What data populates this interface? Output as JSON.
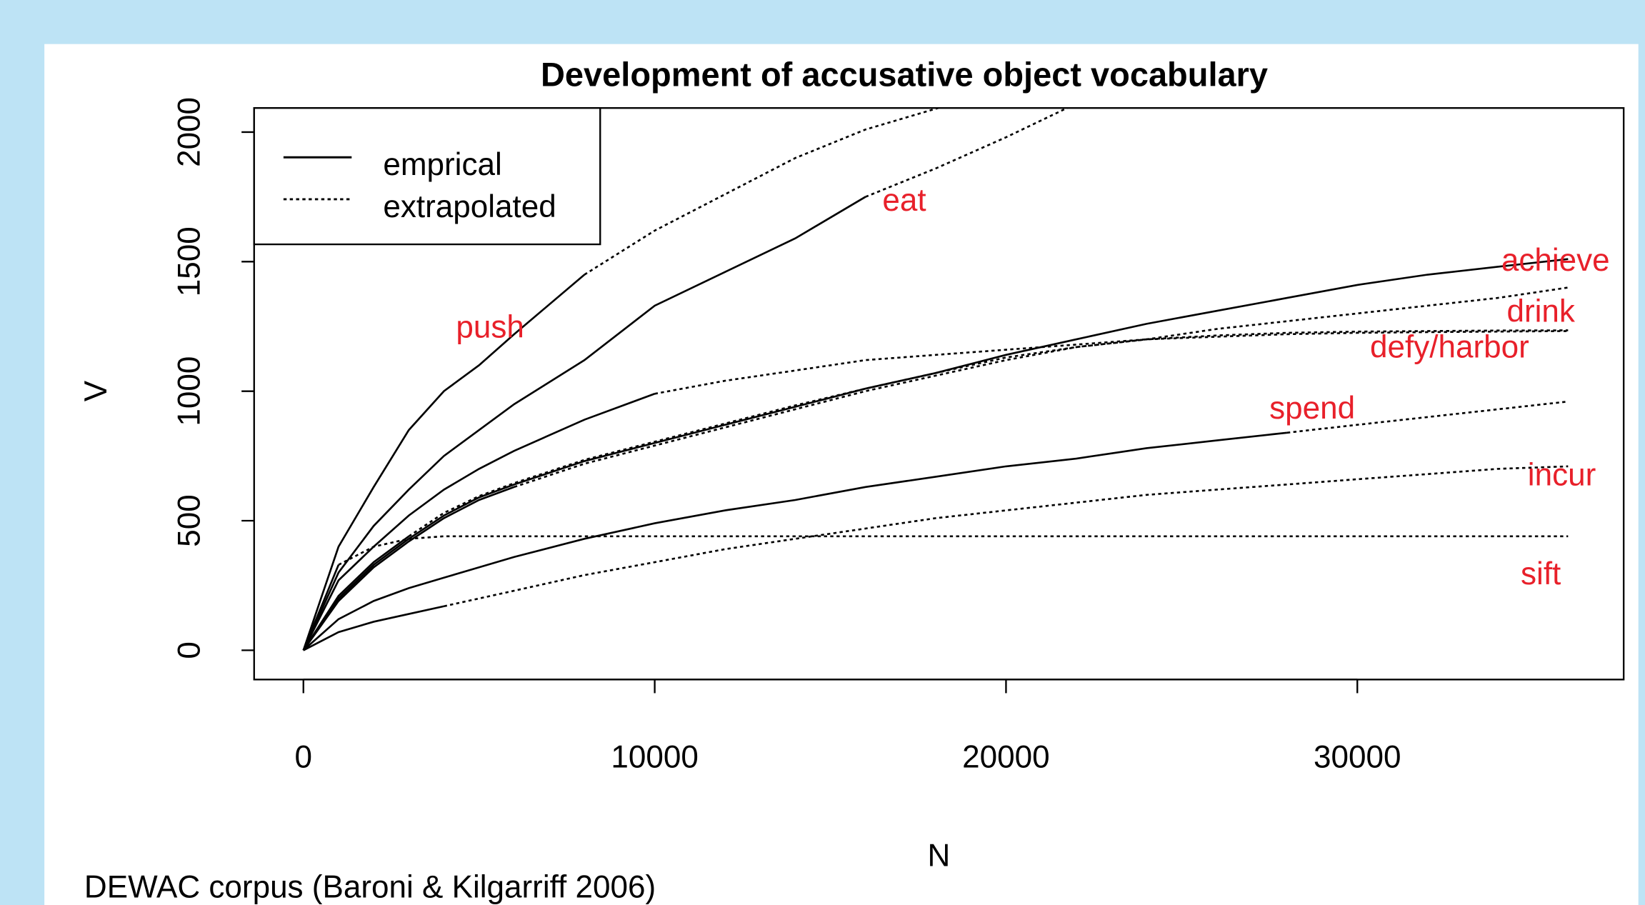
{
  "chart_data": {
    "type": "line",
    "title": "Development of accusative object vocabulary",
    "xlabel": "N",
    "ylabel": "V",
    "caption": "DEWAC corpus (Baroni & Kilgarriff 2006)",
    "legend": [
      "emprical",
      "extrapolated"
    ],
    "annotations": [
      "push",
      "eat",
      "achieve",
      "drink",
      "defy/harbor",
      "spend",
      "incur",
      "sift"
    ],
    "annotation_color": "#e8202a",
    "color": "#000000",
    "xlim": [
      -1403,
      37582
    ],
    "ylim": [
      -113,
      2093
    ],
    "xticks": [
      0,
      10000,
      20000,
      30000
    ],
    "yticks": [
      0,
      500,
      1000,
      1500,
      2000
    ],
    "x": [
      0,
      1000,
      2000,
      3000,
      4000,
      5000,
      6000,
      8000,
      10000,
      12000,
      14000,
      16000,
      18000,
      20000,
      22000,
      24000,
      26000,
      28000,
      30000,
      32000,
      34000,
      36000
    ],
    "series": [
      {
        "values": [
          0,
          400,
          630,
          850,
          1000,
          1100,
          1220,
          1450,
          null,
          null,
          null,
          null,
          null,
          null,
          null,
          null,
          null,
          null,
          null,
          null,
          null,
          null
        ],
        "extrapolated": [
          null,
          null,
          null,
          null,
          null,
          null,
          null,
          1450,
          1620,
          1760,
          1900,
          2010,
          2090,
          2170,
          null,
          null,
          null,
          null,
          null,
          null,
          null,
          null
        ]
      },
      {
        "values": [
          0,
          300,
          480,
          620,
          750,
          850,
          950,
          1120,
          1330,
          1460,
          1590,
          1750,
          null,
          null,
          null,
          null,
          null,
          null,
          null,
          null,
          null,
          null
        ],
        "extrapolated": [
          null,
          null,
          null,
          null,
          null,
          null,
          null,
          null,
          null,
          null,
          null,
          1750,
          1860,
          1980,
          2110,
          null,
          null,
          null,
          null,
          null,
          null,
          null
        ]
      },
      {
        "values": [
          0,
          270,
          400,
          520,
          620,
          700,
          770,
          890,
          990,
          null,
          null,
          null,
          null,
          null,
          null,
          null,
          null,
          null,
          null,
          null,
          null,
          null
        ],
        "extrapolated": [
          null,
          null,
          null,
          null,
          null,
          null,
          null,
          null,
          990,
          1040,
          1080,
          1120,
          1140,
          1160,
          1180,
          1200,
          1210,
          1220,
          1225,
          1228,
          1230,
          1232
        ]
      },
      {
        "values": [
          0,
          200,
          330,
          430,
          520,
          590,
          640,
          730,
          800,
          870,
          940,
          1010,
          1070,
          1140,
          1200,
          1260,
          1310,
          1360,
          1410,
          1450,
          1480,
          1510
        ]
      },
      {
        "values": [
          0,
          210,
          340,
          440,
          null,
          null,
          null,
          null,
          null,
          null,
          null,
          null,
          null,
          null,
          null,
          null,
          null,
          null,
          null,
          null,
          null,
          null
        ],
        "extrapolated": [
          null,
          null,
          null,
          440,
          530,
          595,
          645,
          735,
          805,
          875,
          945,
          1010,
          1070,
          1130,
          1170,
          1200,
          1240,
          1270,
          1300,
          1330,
          1360,
          1400
        ]
      },
      {
        "values": [
          0,
          190,
          320,
          420,
          510,
          580,
          630,
          null,
          null,
          null,
          null,
          null,
          null,
          null,
          null,
          null,
          null,
          null,
          null,
          null,
          null,
          null
        ],
        "extrapolated": [
          null,
          null,
          null,
          null,
          null,
          null,
          630,
          720,
          790,
          860,
          930,
          1000,
          1060,
          1120,
          1170,
          1200,
          1215,
          1225,
          1230,
          1232,
          1234,
          1235
        ]
      },
      {
        "values": [
          0,
          120,
          190,
          240,
          280,
          320,
          360,
          430,
          490,
          540,
          580,
          630,
          670,
          710,
          740,
          780,
          810,
          840,
          null,
          null,
          null,
          null
        ],
        "extrapolated": [
          null,
          null,
          null,
          null,
          null,
          null,
          null,
          null,
          null,
          null,
          null,
          null,
          null,
          null,
          null,
          null,
          null,
          840,
          870,
          900,
          930,
          960
        ]
      },
      {
        "values": [
          0,
          70,
          110,
          140,
          170,
          null,
          null,
          null,
          null,
          null,
          null,
          null,
          null,
          null,
          null,
          null,
          null,
          null,
          null,
          null,
          null,
          null
        ],
        "extrapolated": [
          null,
          null,
          null,
          null,
          170,
          200,
          230,
          290,
          340,
          390,
          430,
          470,
          510,
          540,
          570,
          600,
          620,
          640,
          660,
          680,
          700,
          710
        ]
      },
      {
        "values": [
          0,
          330,
          null,
          null,
          null,
          null,
          null,
          null,
          null,
          null,
          null,
          null,
          null,
          null,
          null,
          null,
          null,
          null,
          null,
          null,
          null,
          null
        ],
        "extrapolated": [
          null,
          330,
          400,
          430,
          440,
          440,
          440,
          440,
          440,
          440,
          440,
          440,
          440,
          440,
          440,
          440,
          440,
          440,
          440,
          440,
          440,
          440
        ]
      }
    ]
  }
}
